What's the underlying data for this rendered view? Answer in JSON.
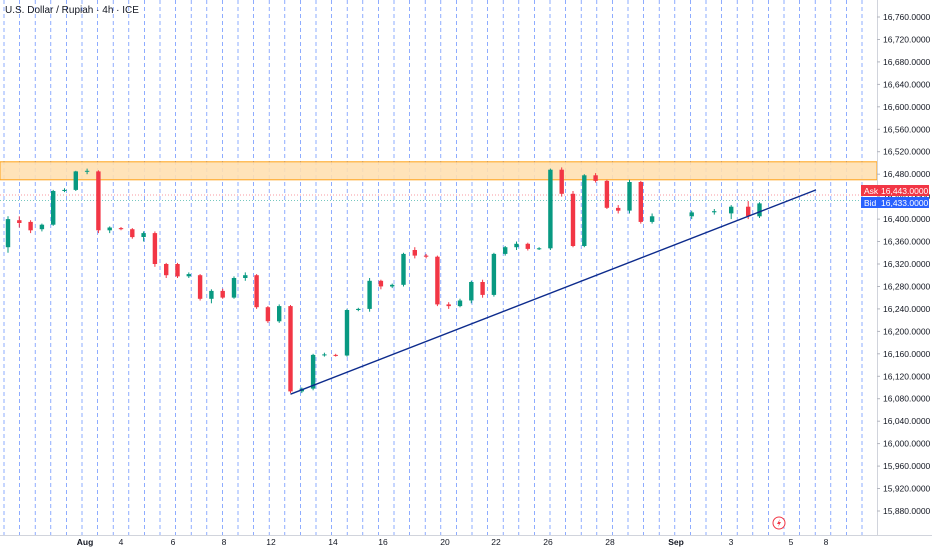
{
  "header": {
    "symbol_title": "U.S. Dollar / Rupiah · 4h · ICE"
  },
  "colors": {
    "up": "#089981",
    "down": "#f23645",
    "grid": "#2962ff",
    "resistance_fill": "#ffe0b2",
    "resistance_border": "#ff9800",
    "trendline": "#0d2b8c",
    "ask": "#f23645",
    "bid": "#2962ff",
    "axis_text": "#131722"
  },
  "price_tags": {
    "ask_label": "Ask",
    "ask_value": "16,443.0000",
    "bid_label": "Bid",
    "bid_value": "16,433.0000"
  },
  "chart_data": {
    "type": "candlestick",
    "instrument": "U.S. Dollar / Rupiah",
    "timeframe": "4h",
    "exchange": "ICE",
    "y_tick_labels": [
      "16,760.0000",
      "16,720.0000",
      "16,680.0000",
      "16,640.0000",
      "16,600.0000",
      "16,560.0000",
      "16,520.0000",
      "16,480.0000",
      "16,440.0000",
      "16,400.0000",
      "16,360.0000",
      "16,320.0000",
      "16,280.0000",
      "16,240.0000",
      "16,200.0000",
      "16,160.0000",
      "16,120.0000",
      "16,080.0000",
      "16,040.0000",
      "16,000.0000",
      "15,960.0000",
      "15,920.0000",
      "15,880.0000"
    ],
    "y_tick_values": [
      16760,
      16720,
      16680,
      16640,
      16600,
      16560,
      16520,
      16480,
      16440,
      16400,
      16360,
      16320,
      16280,
      16240,
      16200,
      16160,
      16120,
      16080,
      16040,
      16000,
      15960,
      15920,
      15880
    ],
    "ylim": [
      15855,
      16785
    ],
    "x_tick_labels": [
      "Aug",
      "4",
      "6",
      "8",
      "12",
      "14",
      "16",
      "20",
      "22",
      "26",
      "28",
      "Sep",
      "3",
      "5",
      "8"
    ],
    "x_tick_index": [
      5.2,
      7.5,
      11,
      15.2,
      18.2,
      22.5,
      25.5,
      29,
      33,
      36.5,
      40,
      44.5,
      48.5,
      52.5,
      55.5
    ],
    "x_tick_bold": [
      "Aug",
      "Sep"
    ],
    "xlim": [
      -0.5,
      57.5
    ],
    "candles": [
      {
        "i": 0,
        "o": 16350,
        "h": 16405,
        "l": 16340,
        "c": 16400
      },
      {
        "i": 1,
        "o": 16398,
        "h": 16405,
        "l": 16385,
        "c": 16393
      },
      {
        "i": 2,
        "o": 16395,
        "h": 16398,
        "l": 16375,
        "c": 16380
      },
      {
        "i": 3,
        "o": 16382,
        "h": 16392,
        "l": 16378,
        "c": 16390
      },
      {
        "i": 4,
        "o": 16390,
        "h": 16452,
        "l": 16388,
        "c": 16450
      },
      {
        "i": 5,
        "o": 16450,
        "h": 16455,
        "l": 16448,
        "c": 16452
      },
      {
        "i": 6,
        "o": 16452,
        "h": 16486,
        "l": 16450,
        "c": 16485
      },
      {
        "i": 7,
        "o": 16485,
        "h": 16490,
        "l": 16480,
        "c": 16486
      },
      {
        "i": 8,
        "o": 16485,
        "h": 16487,
        "l": 16375,
        "c": 16380
      },
      {
        "i": 9,
        "o": 16380,
        "h": 16387,
        "l": 16375,
        "c": 16385
      },
      {
        "i": 10,
        "o": 16384,
        "h": 16386,
        "l": 16380,
        "c": 16382
      },
      {
        "i": 11,
        "o": 16382,
        "h": 16384,
        "l": 16365,
        "c": 16368
      },
      {
        "i": 12,
        "o": 16368,
        "h": 16378,
        "l": 16360,
        "c": 16375
      },
      {
        "i": 13,
        "o": 16375,
        "h": 16378,
        "l": 16315,
        "c": 16320
      },
      {
        "i": 14,
        "o": 16320,
        "h": 16322,
        "l": 16295,
        "c": 16300
      },
      {
        "i": 15,
        "o": 16320,
        "h": 16322,
        "l": 16295,
        "c": 16298
      },
      {
        "i": 16,
        "o": 16298,
        "h": 16305,
        "l": 16295,
        "c": 16302
      },
      {
        "i": 17,
        "o": 16300,
        "h": 16302,
        "l": 16255,
        "c": 16258
      },
      {
        "i": 18,
        "o": 16258,
        "h": 16275,
        "l": 16250,
        "c": 16272
      },
      {
        "i": 19,
        "o": 16272,
        "h": 16276,
        "l": 16258,
        "c": 16260
      },
      {
        "i": 20,
        "o": 16260,
        "h": 16298,
        "l": 16258,
        "c": 16295
      },
      {
        "i": 21,
        "o": 16295,
        "h": 16305,
        "l": 16290,
        "c": 16300
      },
      {
        "i": 22,
        "o": 16300,
        "h": 16302,
        "l": 16240,
        "c": 16243
      },
      {
        "i": 23,
        "o": 16243,
        "h": 16245,
        "l": 16215,
        "c": 16218
      },
      {
        "i": 24,
        "o": 16218,
        "h": 16248,
        "l": 16215,
        "c": 16245
      },
      {
        "i": 25,
        "o": 16245,
        "h": 16247,
        "l": 16090,
        "c": 16093
      },
      {
        "i": 26,
        "o": 16093,
        "h": 16100,
        "l": 16090,
        "c": 16098
      },
      {
        "i": 27,
        "o": 16098,
        "h": 16160,
        "l": 16095,
        "c": 16158
      },
      {
        "i": 28,
        "o": 16158,
        "h": 16162,
        "l": 16155,
        "c": 16159
      },
      {
        "i": 29,
        "o": 16158,
        "h": 16160,
        "l": 16155,
        "c": 16157
      },
      {
        "i": 30,
        "o": 16157,
        "h": 16240,
        "l": 16155,
        "c": 16238
      },
      {
        "i": 31,
        "o": 16238,
        "h": 16242,
        "l": 16236,
        "c": 16240
      },
      {
        "i": 32,
        "o": 16240,
        "h": 16295,
        "l": 16235,
        "c": 16290
      },
      {
        "i": 33,
        "o": 16290,
        "h": 16292,
        "l": 16275,
        "c": 16280
      },
      {
        "i": 34,
        "o": 16280,
        "h": 16285,
        "l": 16277,
        "c": 16283
      },
      {
        "i": 35,
        "o": 16283,
        "h": 16340,
        "l": 16280,
        "c": 16338
      },
      {
        "i": 36,
        "o": 16345,
        "h": 16350,
        "l": 16330,
        "c": 16335
      },
      {
        "i": 37,
        "o": 16335,
        "h": 16338,
        "l": 16330,
        "c": 16333
      },
      {
        "i": 38,
        "o": 16333,
        "h": 16335,
        "l": 16245,
        "c": 16248
      },
      {
        "i": 39,
        "o": 16248,
        "h": 16252,
        "l": 16240,
        "c": 16245
      },
      {
        "i": 40,
        "o": 16245,
        "h": 16258,
        "l": 16243,
        "c": 16255
      },
      {
        "i": 41,
        "o": 16255,
        "h": 16290,
        "l": 16250,
        "c": 16288
      },
      {
        "i": 42,
        "o": 16288,
        "h": 16292,
        "l": 16260,
        "c": 16265
      },
      {
        "i": 43,
        "o": 16265,
        "h": 16340,
        "l": 16262,
        "c": 16338
      },
      {
        "i": 44,
        "o": 16338,
        "h": 16352,
        "l": 16335,
        "c": 16350
      },
      {
        "i": 45,
        "o": 16350,
        "h": 16360,
        "l": 16345,
        "c": 16356
      },
      {
        "i": 46,
        "o": 16356,
        "h": 16358,
        "l": 16344,
        "c": 16347
      },
      {
        "i": 47,
        "o": 16347,
        "h": 16350,
        "l": 16345,
        "c": 16348
      },
      {
        "i": 48,
        "o": 16348,
        "h": 16490,
        "l": 16345,
        "c": 16488
      },
      {
        "i": 49,
        "o": 16488,
        "h": 16492,
        "l": 16440,
        "c": 16445
      },
      {
        "i": 50,
        "o": 16445,
        "h": 16450,
        "l": 16350,
        "c": 16352
      },
      {
        "i": 51,
        "o": 16352,
        "h": 16480,
        "l": 16350,
        "c": 16478
      },
      {
        "i": 52,
        "o": 16478,
        "h": 16482,
        "l": 16465,
        "c": 16468
      },
      {
        "i": 53,
        "o": 16468,
        "h": 16470,
        "l": 16418,
        "c": 16420
      },
      {
        "i": 54,
        "o": 16420,
        "h": 16425,
        "l": 16410,
        "c": 16415
      },
      {
        "i": 55,
        "o": 16415,
        "h": 16470,
        "l": 16410,
        "c": 16466
      },
      {
        "i": 56,
        "o": 16466,
        "h": 16468,
        "l": 16392,
        "c": 16395
      },
      {
        "i": 57,
        "o": 16395,
        "h": 16410,
        "l": 16392,
        "c": 16405
      }
    ],
    "tail_candles": [
      {
        "x": 60.5,
        "o": 16405,
        "h": 16415,
        "l": 16400,
        "c": 16412
      },
      {
        "x": 62.5,
        "o": 16412,
        "h": 16418,
        "l": 16408,
        "c": 16414
      },
      {
        "x": 64.0,
        "o": 16410,
        "h": 16425,
        "l": 16400,
        "c": 16422
      },
      {
        "x": 65.5,
        "o": 16422,
        "h": 16432,
        "l": 16400,
        "c": 16405
      },
      {
        "x": 66.5,
        "o": 16405,
        "h": 16430,
        "l": 16402,
        "c": 16428
      }
    ],
    "resistance_zone": {
      "low": 16470,
      "high": 16502
    },
    "trendline": {
      "x1": 25,
      "y1": 16088,
      "x2": 71.5,
      "y2": 16452
    },
    "ask": 16443,
    "bid": 16433,
    "grid": "vertical dashed"
  }
}
